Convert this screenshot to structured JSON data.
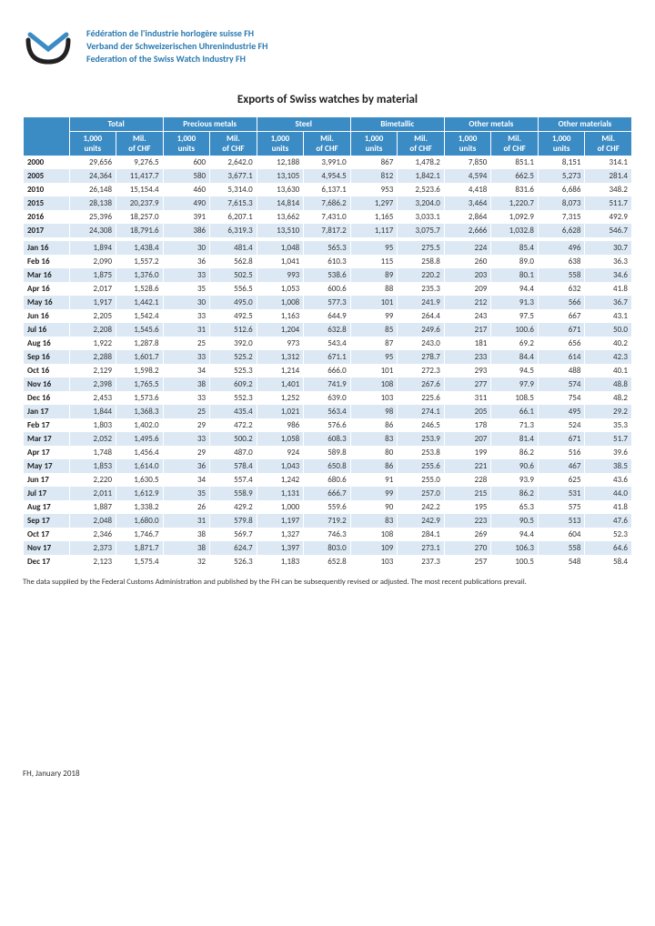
{
  "org": {
    "line_fr": "Fédération de l'industrie horlogère suisse FH",
    "line_de": "Verband der Schweizerischen Uhrenindustrie FH",
    "line_en": "Federation of the Swiss Watch Industry FH"
  },
  "title": "Exports of Swiss watches by material",
  "groups": [
    "Total",
    "Precious metals",
    "Steel",
    "Bimetallic",
    "Other metals",
    "Other materials"
  ],
  "subheaders": [
    "1,000 units",
    "Mil. of CHF"
  ],
  "rows": [
    {
      "label": "2000",
      "v": [
        "29,656",
        "9,276.5",
        "600",
        "2,642.0",
        "12,188",
        "3,991.0",
        "867",
        "1,478.2",
        "7,850",
        "851.1",
        "8,151",
        "314.1"
      ]
    },
    {
      "label": "2005",
      "v": [
        "24,364",
        "11,417.7",
        "580",
        "3,677.1",
        "13,105",
        "4,954.5",
        "812",
        "1,842.1",
        "4,594",
        "662.5",
        "5,273",
        "281.4"
      ]
    },
    {
      "label": "2010",
      "v": [
        "26,148",
        "15,154.4",
        "460",
        "5,314.0",
        "13,630",
        "6,137.1",
        "953",
        "2,523.6",
        "4,418",
        "831.6",
        "6,686",
        "348.2"
      ]
    },
    {
      "label": "2015",
      "v": [
        "28,138",
        "20,237.9",
        "490",
        "7,615.3",
        "14,814",
        "7,686.2",
        "1,297",
        "3,204.0",
        "3,464",
        "1,220.7",
        "8,073",
        "511.7"
      ]
    },
    {
      "label": "2016",
      "v": [
        "25,396",
        "18,257.0",
        "391",
        "6,207.1",
        "13,662",
        "7,431.0",
        "1,165",
        "3,033.1",
        "2,864",
        "1,092.9",
        "7,315",
        "492.9"
      ]
    },
    {
      "label": "2017",
      "v": [
        "24,308",
        "18,791.6",
        "386",
        "6,319.3",
        "13,510",
        "7,817.2",
        "1,117",
        "3,075.7",
        "2,666",
        "1,032.8",
        "6,628",
        "546.7"
      ]
    },
    {
      "label": "",
      "v": [
        "",
        "",
        "",
        "",
        "",
        "",
        "",
        "",
        "",
        "",
        "",
        ""
      ]
    },
    {
      "label": "Jan 16",
      "v": [
        "1,894",
        "1,438.4",
        "30",
        "481.4",
        "1,048",
        "565.3",
        "95",
        "275.5",
        "224",
        "85.4",
        "496",
        "30.7"
      ]
    },
    {
      "label": "Feb 16",
      "v": [
        "2,090",
        "1,557.2",
        "36",
        "562.8",
        "1,041",
        "610.3",
        "115",
        "258.8",
        "260",
        "89.0",
        "638",
        "36.3"
      ]
    },
    {
      "label": "Mar 16",
      "v": [
        "1,875",
        "1,376.0",
        "33",
        "502.5",
        "993",
        "538.6",
        "89",
        "220.2",
        "203",
        "80.1",
        "558",
        "34.6"
      ]
    },
    {
      "label": "Apr 16",
      "v": [
        "2,017",
        "1,528.6",
        "35",
        "556.5",
        "1,053",
        "600.6",
        "88",
        "235.3",
        "209",
        "94.4",
        "632",
        "41.8"
      ]
    },
    {
      "label": "May 16",
      "v": [
        "1,917",
        "1,442.1",
        "30",
        "495.0",
        "1,008",
        "577.3",
        "101",
        "241.9",
        "212",
        "91.3",
        "566",
        "36.7"
      ]
    },
    {
      "label": "Jun 16",
      "v": [
        "2,205",
        "1,542.4",
        "33",
        "492.5",
        "1,163",
        "644.9",
        "99",
        "264.4",
        "243",
        "97.5",
        "667",
        "43.1"
      ]
    },
    {
      "label": "Jul 16",
      "v": [
        "2,208",
        "1,545.6",
        "31",
        "512.6",
        "1,204",
        "632.8",
        "85",
        "249.6",
        "217",
        "100.6",
        "671",
        "50.0"
      ]
    },
    {
      "label": "Aug 16",
      "v": [
        "1,922",
        "1,287.8",
        "25",
        "392.0",
        "973",
        "543.4",
        "87",
        "243.0",
        "181",
        "69.2",
        "656",
        "40.2"
      ]
    },
    {
      "label": "Sep 16",
      "v": [
        "2,288",
        "1,601.7",
        "33",
        "525.2",
        "1,312",
        "671.1",
        "95",
        "278.7",
        "233",
        "84.4",
        "614",
        "42.3"
      ]
    },
    {
      "label": "Oct 16",
      "v": [
        "2,129",
        "1,598.2",
        "34",
        "525.3",
        "1,214",
        "666.0",
        "101",
        "272.3",
        "293",
        "94.5",
        "488",
        "40.1"
      ]
    },
    {
      "label": "Nov 16",
      "v": [
        "2,398",
        "1,765.5",
        "38",
        "609.2",
        "1,401",
        "741.9",
        "108",
        "267.6",
        "277",
        "97.9",
        "574",
        "48.8"
      ]
    },
    {
      "label": "Dec 16",
      "v": [
        "2,453",
        "1,573.6",
        "33",
        "552.3",
        "1,252",
        "639.0",
        "103",
        "225.6",
        "311",
        "108.5",
        "754",
        "48.2"
      ]
    },
    {
      "label": "Jan 17",
      "v": [
        "1,844",
        "1,368.3",
        "25",
        "435.4",
        "1,021",
        "563.4",
        "98",
        "274.1",
        "205",
        "66.1",
        "495",
        "29.2"
      ]
    },
    {
      "label": "Feb 17",
      "v": [
        "1,803",
        "1,402.0",
        "29",
        "472.2",
        "986",
        "576.6",
        "86",
        "246.5",
        "178",
        "71.3",
        "524",
        "35.3"
      ]
    },
    {
      "label": "Mar 17",
      "v": [
        "2,052",
        "1,495.6",
        "33",
        "500.2",
        "1,058",
        "608.3",
        "83",
        "253.9",
        "207",
        "81.4",
        "671",
        "51.7"
      ]
    },
    {
      "label": "Apr 17",
      "v": [
        "1,748",
        "1,456.4",
        "29",
        "487.0",
        "924",
        "589.8",
        "80",
        "253.8",
        "199",
        "86.2",
        "516",
        "39.6"
      ]
    },
    {
      "label": "May 17",
      "v": [
        "1,853",
        "1,614.0",
        "36",
        "578.4",
        "1,043",
        "650.8",
        "86",
        "255.6",
        "221",
        "90.6",
        "467",
        "38.5"
      ]
    },
    {
      "label": "Jun 17",
      "v": [
        "2,220",
        "1,630.5",
        "34",
        "557.4",
        "1,242",
        "680.6",
        "91",
        "255.0",
        "228",
        "93.9",
        "625",
        "43.6"
      ]
    },
    {
      "label": "Jul 17",
      "v": [
        "2,011",
        "1,612.9",
        "35",
        "558.9",
        "1,131",
        "666.7",
        "99",
        "257.0",
        "215",
        "86.2",
        "531",
        "44.0"
      ]
    },
    {
      "label": "Aug 17",
      "v": [
        "1,887",
        "1,338.2",
        "26",
        "429.2",
        "1,000",
        "559.6",
        "90",
        "242.2",
        "195",
        "65.3",
        "575",
        "41.8"
      ]
    },
    {
      "label": "Sep 17",
      "v": [
        "2,048",
        "1,680.0",
        "31",
        "579.8",
        "1,197",
        "719.2",
        "83",
        "242.9",
        "223",
        "90.5",
        "513",
        "47.6"
      ]
    },
    {
      "label": "Oct 17",
      "v": [
        "2,346",
        "1,746.7",
        "38",
        "569.7",
        "1,327",
        "746.3",
        "108",
        "284.1",
        "269",
        "94.4",
        "604",
        "52.3"
      ]
    },
    {
      "label": "Nov 17",
      "v": [
        "2,373",
        "1,871.7",
        "38",
        "624.7",
        "1,397",
        "803.0",
        "109",
        "273.1",
        "270",
        "106.3",
        "558",
        "64.6"
      ]
    },
    {
      "label": "Dec 17",
      "v": [
        "2,123",
        "1,575.4",
        "32",
        "526.3",
        "1,183",
        "652.8",
        "103",
        "237.3",
        "257",
        "100.5",
        "548",
        "58.4"
      ]
    }
  ],
  "footnote": "The data supplied by the Federal Customs Administration and published by the FH can be subsequently revised or adjusted. The most recent publications prevail.",
  "footer": "FH, January 2018",
  "colors": {
    "header_bg": "#3b8bc4",
    "stripe_bg": "#dce9f4",
    "brand_text": "#2a7ab0"
  }
}
